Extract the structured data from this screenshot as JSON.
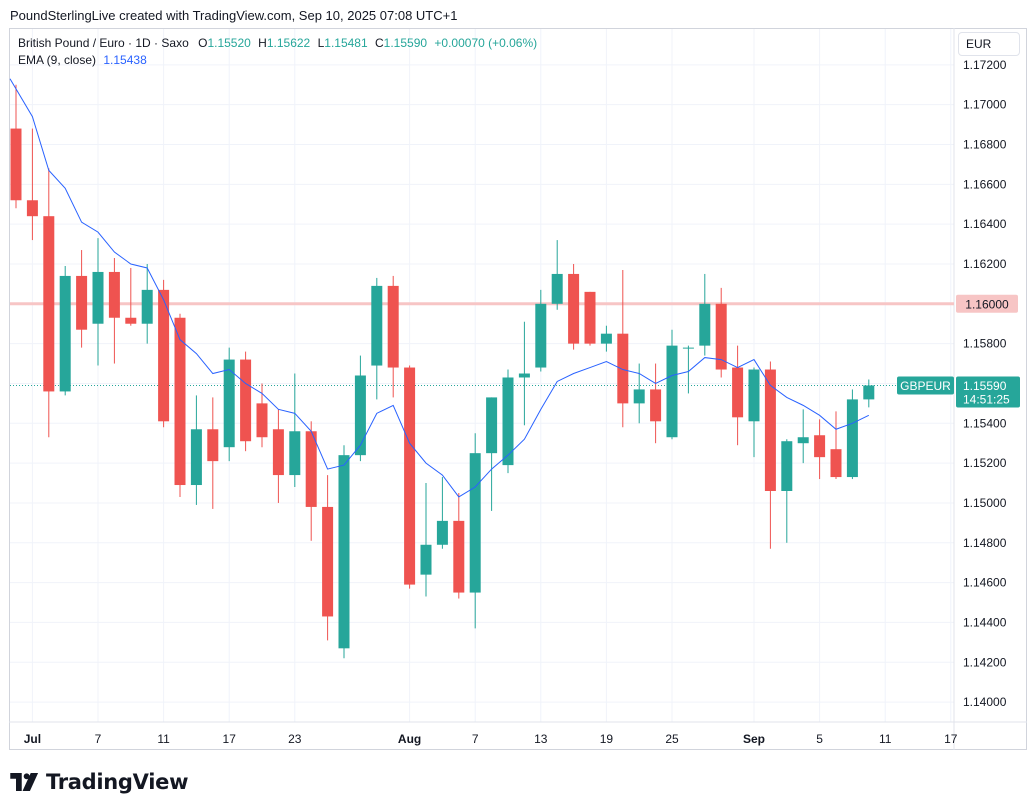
{
  "header": {
    "attribution": "PoundSterlingLive created with TradingView.com, Sep 10, 2025 07:08 UTC+1"
  },
  "legend": {
    "symbol": "British Pound / Euro · 1D · Saxo",
    "o_label": "O",
    "o_value": "1.15520",
    "h_label": "H",
    "h_value": "1.15622",
    "l_label": "L",
    "l_value": "1.15481",
    "c_label": "C",
    "c_value": "1.15590",
    "change": "+0.00070 (+0.06%)",
    "ema_label": "EMA (9, close)",
    "ema_value": "1.15438"
  },
  "currency_button": "EUR",
  "price_tag": {
    "symbol": "GBPEUR",
    "price": "1.15590",
    "countdown": "14:51:25"
  },
  "level_tag": "1.16000",
  "brand": "TradingView",
  "colors": {
    "up": "#26a69a",
    "down": "#ef5350",
    "ema": "#2962ff",
    "level": "#f7c5c5"
  },
  "chart_data": {
    "type": "candlestick",
    "ylim": [
      1.139,
      1.1738
    ],
    "y_ticks": [
      "1.14000",
      "1.14200",
      "1.14400",
      "1.14600",
      "1.14800",
      "1.15000",
      "1.15200",
      "1.15400",
      "1.15600",
      "1.15800",
      "1.16000",
      "1.16200",
      "1.16400",
      "1.16600",
      "1.16800",
      "1.17000",
      "1.17200"
    ],
    "x_ticks": [
      {
        "label": "Jul",
        "i": 1,
        "bold": true
      },
      {
        "label": "7",
        "i": 5
      },
      {
        "label": "11",
        "i": 9
      },
      {
        "label": "17",
        "i": 13
      },
      {
        "label": "23",
        "i": 17
      },
      {
        "label": "Aug",
        "i": 24,
        "bold": true
      },
      {
        "label": "7",
        "i": 28
      },
      {
        "label": "13",
        "i": 32
      },
      {
        "label": "19",
        "i": 36
      },
      {
        "label": "25",
        "i": 40
      },
      {
        "label": "Sep",
        "i": 45,
        "bold": true
      },
      {
        "label": "5",
        "i": 49
      },
      {
        "label": "11",
        "i": 53
      },
      {
        "label": "17",
        "i": 57
      }
    ],
    "horizontal_level": 1.16,
    "last_price": 1.1559,
    "candles": [
      {
        "o": 1.1688,
        "h": 1.171,
        "l": 1.1648,
        "c": 1.1652
      },
      {
        "o": 1.1652,
        "h": 1.1688,
        "l": 1.1632,
        "c": 1.1644
      },
      {
        "o": 1.1644,
        "h": 1.1668,
        "l": 1.1533,
        "c": 1.1556
      },
      {
        "o": 1.1556,
        "h": 1.1619,
        "l": 1.1554,
        "c": 1.1614
      },
      {
        "o": 1.1614,
        "h": 1.1627,
        "l": 1.1578,
        "c": 1.1587
      },
      {
        "o": 1.159,
        "h": 1.1633,
        "l": 1.1569,
        "c": 1.1616
      },
      {
        "o": 1.1616,
        "h": 1.1623,
        "l": 1.157,
        "c": 1.1593
      },
      {
        "o": 1.1593,
        "h": 1.1618,
        "l": 1.1589,
        "c": 1.159
      },
      {
        "o": 1.159,
        "h": 1.162,
        "l": 1.158,
        "c": 1.1607
      },
      {
        "o": 1.1607,
        "h": 1.1612,
        "l": 1.1538,
        "c": 1.1541
      },
      {
        "o": 1.1593,
        "h": 1.1595,
        "l": 1.1503,
        "c": 1.1509
      },
      {
        "o": 1.1509,
        "h": 1.1554,
        "l": 1.1499,
        "c": 1.1537
      },
      {
        "o": 1.1537,
        "h": 1.1553,
        "l": 1.1497,
        "c": 1.1521
      },
      {
        "o": 1.1528,
        "h": 1.1578,
        "l": 1.1521,
        "c": 1.1572
      },
      {
        "o": 1.1572,
        "h": 1.1576,
        "l": 1.1526,
        "c": 1.1531
      },
      {
        "o": 1.155,
        "h": 1.156,
        "l": 1.1528,
        "c": 1.1533
      },
      {
        "o": 1.1537,
        "h": 1.1547,
        "l": 1.15,
        "c": 1.1514
      },
      {
        "o": 1.1514,
        "h": 1.1565,
        "l": 1.1508,
        "c": 1.1536
      },
      {
        "o": 1.1536,
        "h": 1.1541,
        "l": 1.1481,
        "c": 1.1498
      },
      {
        "o": 1.1498,
        "h": 1.1514,
        "l": 1.1431,
        "c": 1.1443
      },
      {
        "o": 1.1427,
        "h": 1.1529,
        "l": 1.1422,
        "c": 1.1524
      },
      {
        "o": 1.1524,
        "h": 1.1574,
        "l": 1.1521,
        "c": 1.1564
      },
      {
        "o": 1.1569,
        "h": 1.1613,
        "l": 1.1552,
        "c": 1.1609
      },
      {
        "o": 1.1609,
        "h": 1.1614,
        "l": 1.1553,
        "c": 1.1568
      },
      {
        "o": 1.1568,
        "h": 1.1569,
        "l": 1.1457,
        "c": 1.1459
      },
      {
        "o": 1.1464,
        "h": 1.151,
        "l": 1.1453,
        "c": 1.1479
      },
      {
        "o": 1.1479,
        "h": 1.1513,
        "l": 1.1477,
        "c": 1.1491
      },
      {
        "o": 1.1491,
        "h": 1.1505,
        "l": 1.1452,
        "c": 1.1455
      },
      {
        "o": 1.1455,
        "h": 1.1535,
        "l": 1.1437,
        "c": 1.1525
      },
      {
        "o": 1.1525,
        "h": 1.1553,
        "l": 1.1496,
        "c": 1.1553
      },
      {
        "o": 1.1519,
        "h": 1.1567,
        "l": 1.1515,
        "c": 1.1563
      },
      {
        "o": 1.1563,
        "h": 1.1591,
        "l": 1.1539,
        "c": 1.1565
      },
      {
        "o": 1.1568,
        "h": 1.1607,
        "l": 1.1566,
        "c": 1.16
      },
      {
        "o": 1.16,
        "h": 1.1632,
        "l": 1.1597,
        "c": 1.1615
      },
      {
        "o": 1.1615,
        "h": 1.162,
        "l": 1.1577,
        "c": 1.158
      },
      {
        "o": 1.1606,
        "h": 1.1606,
        "l": 1.1579,
        "c": 1.158
      },
      {
        "o": 1.158,
        "h": 1.1589,
        "l": 1.1576,
        "c": 1.1585
      },
      {
        "o": 1.1585,
        "h": 1.1617,
        "l": 1.1538,
        "c": 1.155
      },
      {
        "o": 1.155,
        "h": 1.157,
        "l": 1.154,
        "c": 1.1557
      },
      {
        "o": 1.1557,
        "h": 1.157,
        "l": 1.153,
        "c": 1.1541
      },
      {
        "o": 1.1533,
        "h": 1.1587,
        "l": 1.1532,
        "c": 1.1579
      },
      {
        "o": 1.1578,
        "h": 1.1579,
        "l": 1.1555,
        "c": 1.1578
      },
      {
        "o": 1.1579,
        "h": 1.1615,
        "l": 1.1574,
        "c": 1.16
      },
      {
        "o": 1.16,
        "h": 1.1608,
        "l": 1.1563,
        "c": 1.1567
      },
      {
        "o": 1.1568,
        "h": 1.1579,
        "l": 1.1529,
        "c": 1.1543
      },
      {
        "o": 1.1541,
        "h": 1.1568,
        "l": 1.1523,
        "c": 1.1567
      },
      {
        "o": 1.1567,
        "h": 1.1571,
        "l": 1.1477,
        "c": 1.1506
      },
      {
        "o": 1.1506,
        "h": 1.1532,
        "l": 1.148,
        "c": 1.1531
      },
      {
        "o": 1.153,
        "h": 1.1547,
        "l": 1.152,
        "c": 1.1533
      },
      {
        "o": 1.1534,
        "h": 1.1542,
        "l": 1.1512,
        "c": 1.1523
      },
      {
        "o": 1.1527,
        "h": 1.1546,
        "l": 1.1512,
        "c": 1.1513
      },
      {
        "o": 1.1513,
        "h": 1.1557,
        "l": 1.1512,
        "c": 1.1552
      },
      {
        "o": 1.1552,
        "h": 1.1562,
        "l": 1.1548,
        "c": 1.1559
      }
    ],
    "ema": [
      1.1713,
      1.1694,
      1.1667,
      1.1658,
      1.1641,
      1.1636,
      1.1626,
      1.162,
      1.1618,
      1.1602,
      1.1582,
      1.1575,
      1.1565,
      1.1567,
      1.156,
      1.1555,
      1.1547,
      1.1545,
      1.1536,
      1.1517,
      1.1519,
      1.1529,
      1.1545,
      1.1549,
      1.153,
      1.152,
      1.1514,
      1.1503,
      1.1508,
      1.1517,
      1.1524,
      1.1532,
      1.1547,
      1.1561,
      1.1565,
      1.1568,
      1.1571,
      1.1567,
      1.1565,
      1.156,
      1.1564,
      1.1566,
      1.1573,
      1.1572,
      1.1568,
      1.1572,
      1.1559,
      1.1553,
      1.1549,
      1.1544,
      1.1537,
      1.154,
      1.1544
    ]
  }
}
